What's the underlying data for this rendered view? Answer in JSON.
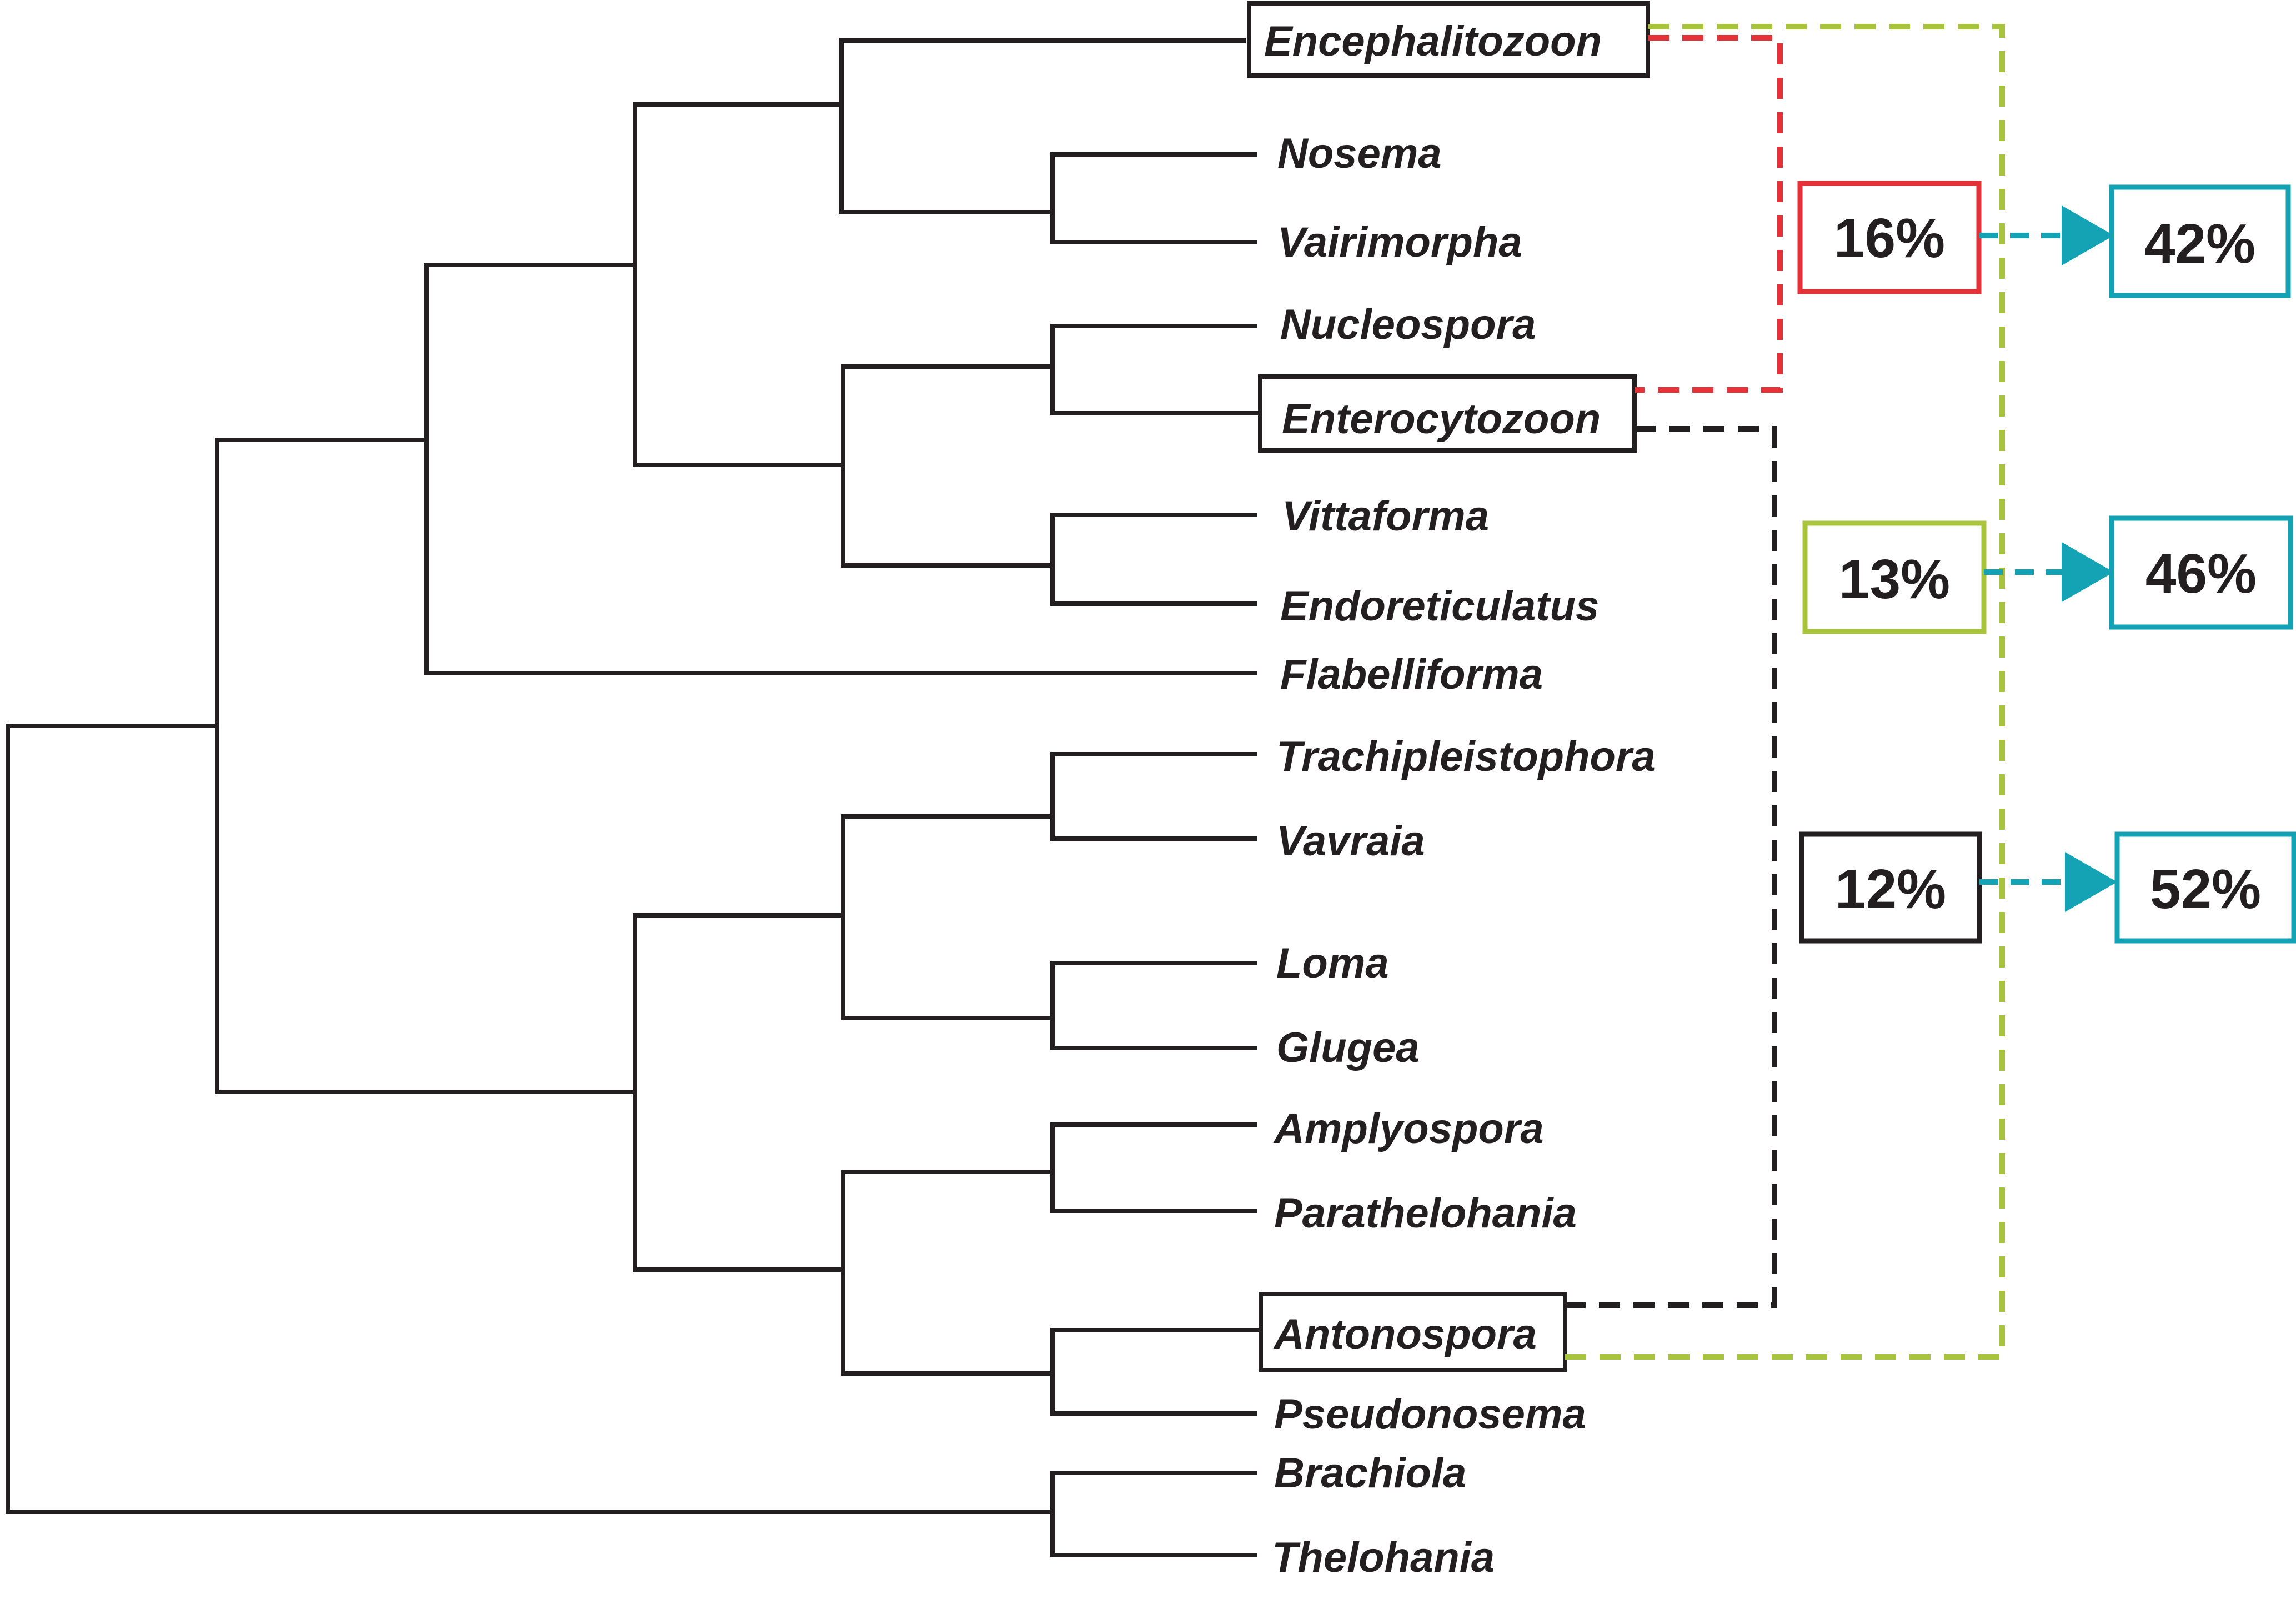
{
  "taxa": {
    "encephalitozoon": "Encephalitozoon",
    "nosema": "Nosema",
    "vairimorpha": "Vairimorpha",
    "nucleospora": "Nucleospora",
    "enterocytozoon": "Enterocytozoon",
    "vittaforma": "Vittaforma",
    "endoreticulatus": "Endoreticulatus",
    "flabelliforma": "Flabelliforma",
    "trachipleistophora": "Trachipleistophora",
    "vavraia": "Vavraia",
    "loma": "Loma",
    "glugea": "Glugea",
    "amplyospora": "Amplyospora",
    "parathelohania": "Parathelohania",
    "antonospora": "Antonospora",
    "pseudonosema": "Pseudonosema",
    "brachiola": "Brachiola",
    "thelohania": "Thelohania"
  },
  "comparisons": [
    {
      "value": "16%",
      "result": "42%",
      "color": "#e53238"
    },
    {
      "value": "13%",
      "result": "46%",
      "color": "#a8c43c"
    },
    {
      "value": "12%",
      "result": "52%",
      "color": "#231f20"
    }
  ],
  "colors": {
    "tree": "#231f20",
    "arrow": "#13a3b4"
  }
}
